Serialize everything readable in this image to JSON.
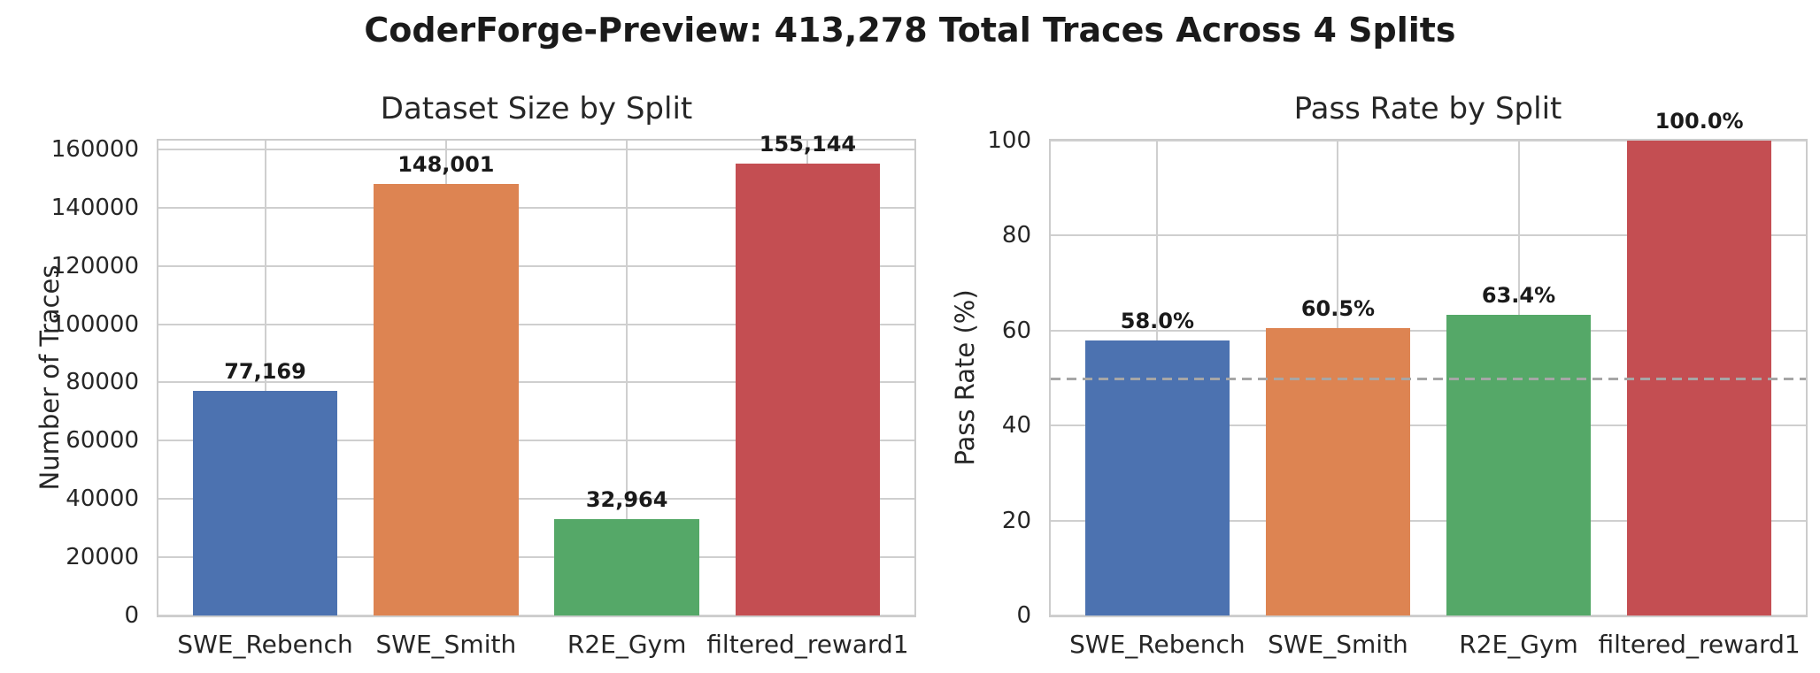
{
  "header": {
    "title": "CoderForge-Preview: 413,278 Total Traces Across 4 Splits"
  },
  "colors": {
    "bars": [
      "#4C72B0",
      "#DD8452",
      "#55A868",
      "#C44E52"
    ],
    "grid": "#cfcfcf",
    "spine": "#cccccc",
    "tick_text": "#262626",
    "label_text": "#1a1a1a",
    "reference_line": "#a6a6a6"
  },
  "chart_data": [
    {
      "type": "bar",
      "title": "Dataset Size by Split",
      "ylabel": "Number of Traces",
      "xlabel": "",
      "categories": [
        "SWE_Rebench",
        "SWE_Smith",
        "R2E_Gym",
        "filtered_reward1"
      ],
      "values": [
        77169,
        148001,
        32964,
        155144
      ],
      "bar_labels": [
        "77,169",
        "148,001",
        "32,964",
        "155,144"
      ],
      "yticks": [
        0,
        20000,
        40000,
        60000,
        80000,
        100000,
        120000,
        140000,
        160000
      ],
      "ytick_labels": [
        "0",
        "20000",
        "40000",
        "60000",
        "80000",
        "100000",
        "120000",
        "140000",
        "160000"
      ],
      "ylim": [
        0,
        163000
      ],
      "xlim": [
        -0.59,
        3.59
      ],
      "bar_width_units": 0.8,
      "grid": true,
      "legend": "none"
    },
    {
      "type": "bar",
      "title": "Pass Rate by Split",
      "ylabel": "Pass Rate (%)",
      "xlabel": "",
      "categories": [
        "SWE_Rebench",
        "SWE_Smith",
        "R2E_Gym",
        "filtered_reward1"
      ],
      "values": [
        58.0,
        60.5,
        63.4,
        100.0
      ],
      "bar_labels": [
        "58.0%",
        "60.5%",
        "63.4%",
        "100.0%"
      ],
      "yticks": [
        0,
        20,
        40,
        60,
        80,
        100
      ],
      "ytick_labels": [
        "0",
        "20",
        "40",
        "60",
        "80",
        "100"
      ],
      "ylim": [
        0,
        100
      ],
      "xlim": [
        -0.59,
        3.59
      ],
      "bar_width_units": 0.8,
      "grid": true,
      "legend": "none",
      "reference_line": {
        "y": 50,
        "style": "dashed"
      }
    }
  ]
}
